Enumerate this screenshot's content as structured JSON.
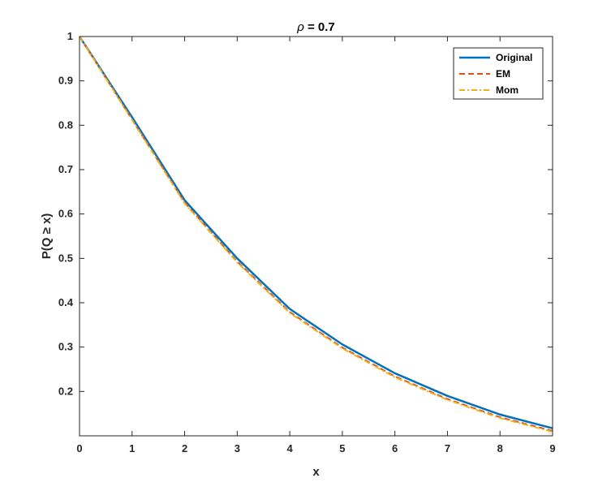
{
  "chart_data": {
    "type": "line",
    "title": "ρ = 0.7",
    "xlabel": "x",
    "ylabel": "P(Q ≥ x)",
    "xlim": [
      0,
      9
    ],
    "ylim": [
      0.1,
      1
    ],
    "xticks": [
      0,
      1,
      2,
      3,
      4,
      5,
      6,
      7,
      8,
      9
    ],
    "yticks": [
      0.2,
      0.3,
      0.4,
      0.5,
      0.6,
      0.7,
      0.8,
      0.9,
      1
    ],
    "ytick_labels": [
      "0.2",
      "0.3",
      "0.4",
      "0.5",
      "0.6",
      "0.7",
      "0.8",
      "0.9",
      "1"
    ],
    "grid": false,
    "legend_position": "top-right",
    "x": [
      0,
      1,
      2,
      3,
      4,
      5,
      6,
      7,
      8,
      9
    ],
    "series": [
      {
        "name": "Original",
        "color": "#0072BD",
        "style": "solid",
        "values": [
          1.0,
          0.818,
          0.631,
          0.5,
          0.386,
          0.306,
          0.241,
          0.19,
          0.148,
          0.117
        ]
      },
      {
        "name": "EM",
        "color": "#D95319",
        "style": "dashed",
        "values": [
          1.0,
          0.813,
          0.626,
          0.493,
          0.379,
          0.299,
          0.234,
          0.183,
          0.142,
          0.111
        ]
      },
      {
        "name": "Mom",
        "color": "#EDB120",
        "style": "dashdot",
        "values": [
          1.0,
          0.812,
          0.624,
          0.491,
          0.377,
          0.297,
          0.232,
          0.181,
          0.14,
          0.109
        ]
      }
    ]
  }
}
